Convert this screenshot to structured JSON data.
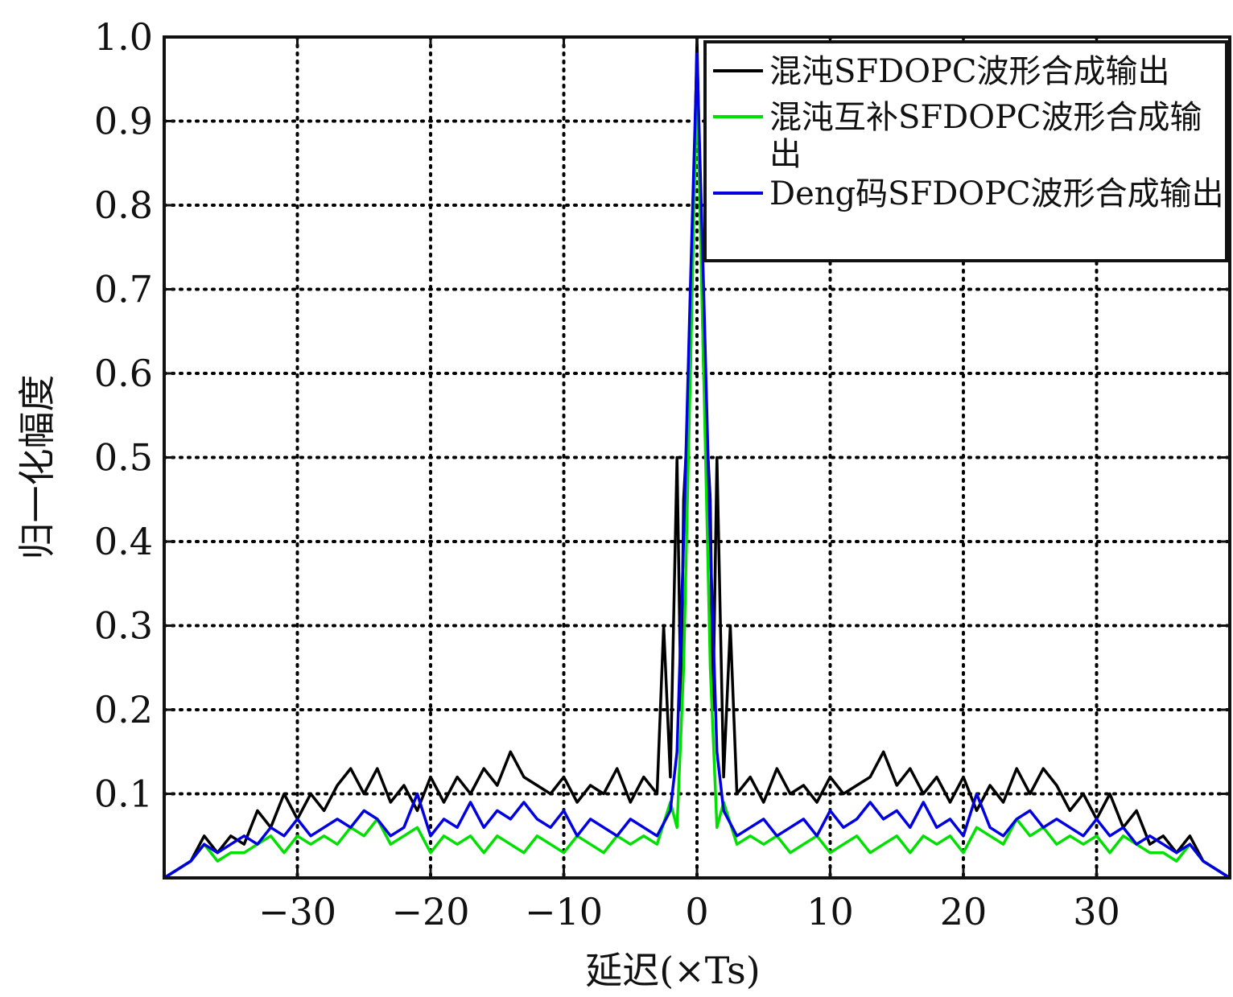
{
  "chart_data": {
    "type": "line",
    "xlabel": "延迟(×Ts)",
    "ylabel": "归一化幅度",
    "xlim": [
      -40,
      40
    ],
    "ylim": [
      0,
      1.0
    ],
    "xticks": [
      -30,
      -20,
      -10,
      0,
      10,
      20,
      30
    ],
    "xtick_labels": [
      "−30",
      "−20",
      "−10",
      "0",
      "10",
      "20",
      "30"
    ],
    "yticks": [
      0.1,
      0.2,
      0.3,
      0.4,
      0.5,
      0.6,
      0.7,
      0.8,
      0.9,
      1.0
    ],
    "ytick_labels": [
      "0.1",
      "0.2",
      "0.3",
      "0.4",
      "0.5",
      "0.6",
      "0.7",
      "0.8",
      "0.9",
      "1.0"
    ],
    "grid": true,
    "legend_position": "top-right",
    "series": [
      {
        "name": "混沌SFDOPC波形合成输出",
        "color": "#000000",
        "x": [
          -40,
          -38,
          -37,
          -36,
          -35,
          -34,
          -33,
          -32,
          -31,
          -30,
          -29,
          -28,
          -27,
          -26,
          -25,
          -24,
          -23,
          -22,
          -21,
          -20,
          -19,
          -18,
          -17,
          -16,
          -15,
          -14,
          -13,
          -12,
          -11,
          -10,
          -9,
          -8,
          -7,
          -6,
          -5,
          -4,
          -3,
          -2.5,
          -2,
          -1.5,
          -1.2,
          -1,
          -0.5,
          0,
          0.5,
          1,
          1.2,
          1.5,
          2,
          2.5,
          3,
          4,
          5,
          6,
          7,
          8,
          9,
          10,
          11,
          12,
          13,
          14,
          15,
          16,
          17,
          18,
          19,
          20,
          21,
          22,
          23,
          24,
          25,
          26,
          27,
          28,
          29,
          30,
          31,
          32,
          33,
          34,
          35,
          36,
          37,
          38,
          40
        ],
        "y": [
          0,
          0.02,
          0.05,
          0.03,
          0.05,
          0.04,
          0.08,
          0.06,
          0.1,
          0.07,
          0.1,
          0.08,
          0.11,
          0.13,
          0.1,
          0.13,
          0.09,
          0.11,
          0.08,
          0.12,
          0.09,
          0.12,
          0.1,
          0.13,
          0.11,
          0.15,
          0.12,
          0.11,
          0.1,
          0.12,
          0.09,
          0.11,
          0.1,
          0.13,
          0.09,
          0.12,
          0.1,
          0.3,
          0.12,
          0.5,
          0.2,
          0.45,
          0.6,
          1.0,
          0.6,
          0.45,
          0.2,
          0.5,
          0.12,
          0.3,
          0.1,
          0.12,
          0.09,
          0.13,
          0.1,
          0.11,
          0.09,
          0.12,
          0.1,
          0.11,
          0.12,
          0.15,
          0.11,
          0.13,
          0.1,
          0.12,
          0.09,
          0.12,
          0.08,
          0.11,
          0.09,
          0.13,
          0.1,
          0.13,
          0.11,
          0.08,
          0.1,
          0.07,
          0.1,
          0.06,
          0.08,
          0.04,
          0.05,
          0.03,
          0.05,
          0.02,
          0
        ]
      },
      {
        "name": "混沌互补SFDOPC波形合成输出",
        "color": "#00e000",
        "x": [
          -40,
          -38,
          -37,
          -36,
          -35,
          -34,
          -33,
          -32,
          -31,
          -30,
          -29,
          -28,
          -27,
          -26,
          -25,
          -24,
          -23,
          -22,
          -21,
          -20,
          -19,
          -18,
          -17,
          -16,
          -15,
          -14,
          -13,
          -12,
          -11,
          -10,
          -9,
          -8,
          -7,
          -6,
          -5,
          -4,
          -3,
          -2,
          -1.5,
          -1,
          -0.5,
          0,
          0.5,
          1,
          1.5,
          2,
          3,
          4,
          5,
          6,
          7,
          8,
          9,
          10,
          11,
          12,
          13,
          14,
          15,
          16,
          17,
          18,
          19,
          20,
          21,
          22,
          23,
          24,
          25,
          26,
          27,
          28,
          29,
          30,
          31,
          32,
          33,
          34,
          35,
          36,
          37,
          38,
          40
        ],
        "y": [
          0,
          0.02,
          0.04,
          0.02,
          0.03,
          0.03,
          0.04,
          0.05,
          0.03,
          0.05,
          0.04,
          0.05,
          0.04,
          0.06,
          0.05,
          0.07,
          0.04,
          0.05,
          0.06,
          0.03,
          0.05,
          0.04,
          0.05,
          0.03,
          0.05,
          0.04,
          0.03,
          0.05,
          0.04,
          0.03,
          0.05,
          0.04,
          0.03,
          0.05,
          0.04,
          0.05,
          0.04,
          0.09,
          0.06,
          0.25,
          0.6,
          0.95,
          0.6,
          0.25,
          0.06,
          0.09,
          0.04,
          0.05,
          0.04,
          0.05,
          0.03,
          0.04,
          0.05,
          0.03,
          0.04,
          0.05,
          0.03,
          0.04,
          0.05,
          0.03,
          0.05,
          0.04,
          0.05,
          0.03,
          0.06,
          0.05,
          0.04,
          0.07,
          0.05,
          0.06,
          0.04,
          0.05,
          0.04,
          0.05,
          0.03,
          0.05,
          0.04,
          0.03,
          0.03,
          0.02,
          0.04,
          0.02,
          0
        ]
      },
      {
        "name": "Deng码SFDOPC波形合成输出",
        "color": "#0000e0",
        "x": [
          -40,
          -38,
          -37,
          -36,
          -35,
          -34,
          -33,
          -32,
          -31,
          -30,
          -29,
          -28,
          -27,
          -26,
          -25,
          -24,
          -23,
          -22,
          -21,
          -20,
          -19,
          -18,
          -17,
          -16,
          -15,
          -14,
          -13,
          -12,
          -11,
          -10,
          -9,
          -8,
          -7,
          -6,
          -5,
          -4,
          -3,
          -2,
          -1.5,
          -1,
          -0.5,
          0,
          0.5,
          1,
          1.5,
          2,
          3,
          4,
          5,
          6,
          7,
          8,
          9,
          10,
          11,
          12,
          13,
          14,
          15,
          16,
          17,
          18,
          19,
          20,
          21,
          22,
          23,
          24,
          25,
          26,
          27,
          28,
          29,
          30,
          31,
          32,
          33,
          34,
          35,
          36,
          37,
          38,
          40
        ],
        "y": [
          0,
          0.02,
          0.04,
          0.03,
          0.04,
          0.05,
          0.04,
          0.06,
          0.05,
          0.07,
          0.05,
          0.06,
          0.07,
          0.06,
          0.08,
          0.07,
          0.05,
          0.06,
          0.1,
          0.05,
          0.07,
          0.06,
          0.09,
          0.06,
          0.08,
          0.07,
          0.09,
          0.07,
          0.06,
          0.08,
          0.05,
          0.07,
          0.06,
          0.05,
          0.07,
          0.06,
          0.05,
          0.08,
          0.15,
          0.4,
          0.7,
          0.98,
          0.7,
          0.4,
          0.15,
          0.08,
          0.05,
          0.06,
          0.07,
          0.05,
          0.06,
          0.07,
          0.05,
          0.08,
          0.06,
          0.07,
          0.09,
          0.07,
          0.08,
          0.06,
          0.09,
          0.06,
          0.07,
          0.05,
          0.1,
          0.06,
          0.05,
          0.07,
          0.08,
          0.06,
          0.07,
          0.06,
          0.05,
          0.07,
          0.05,
          0.06,
          0.04,
          0.05,
          0.04,
          0.03,
          0.04,
          0.02,
          0
        ]
      }
    ]
  }
}
